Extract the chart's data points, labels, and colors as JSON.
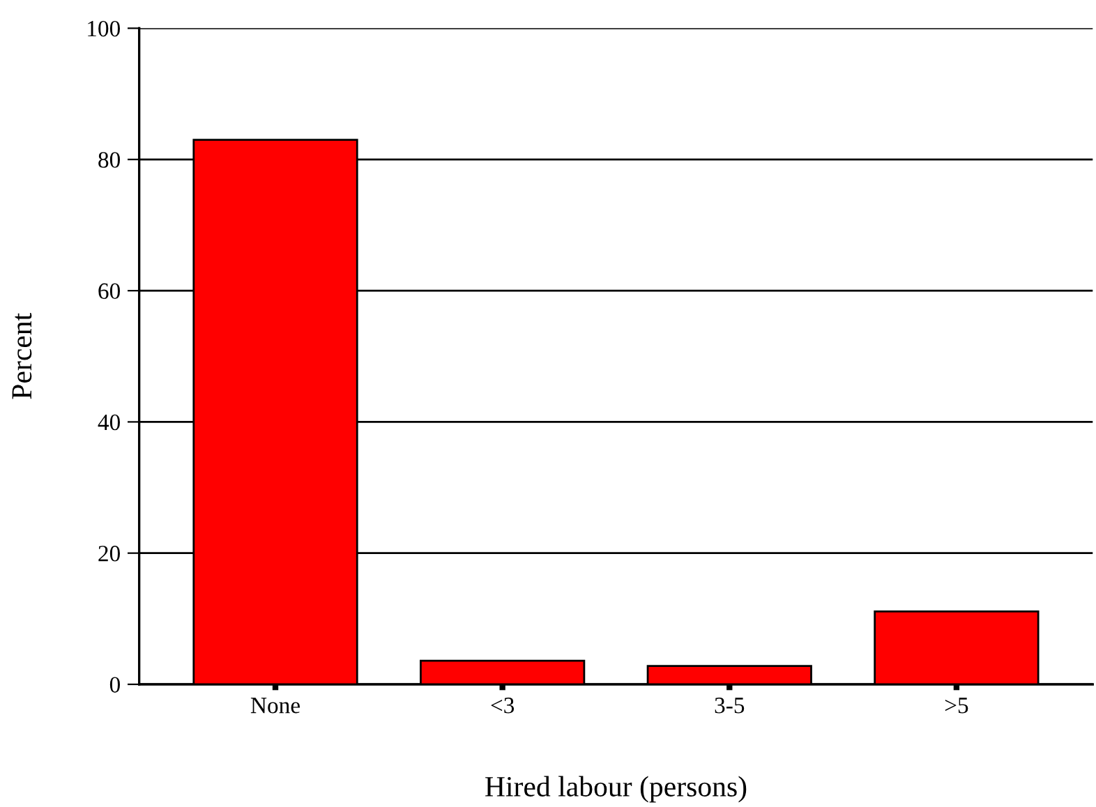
{
  "chart_data": {
    "type": "bar",
    "xlabel": "Hired labour (persons)",
    "ylabel": "Percent",
    "categories": [
      "None",
      "<3",
      "3-5",
      ">5"
    ],
    "values": [
      83,
      3.6,
      2.8,
      11.1
    ],
    "color": "#ff0000",
    "ylim": [
      0,
      100
    ],
    "yticks": [
      0,
      20,
      40,
      60,
      80,
      100
    ],
    "grid": "y"
  }
}
